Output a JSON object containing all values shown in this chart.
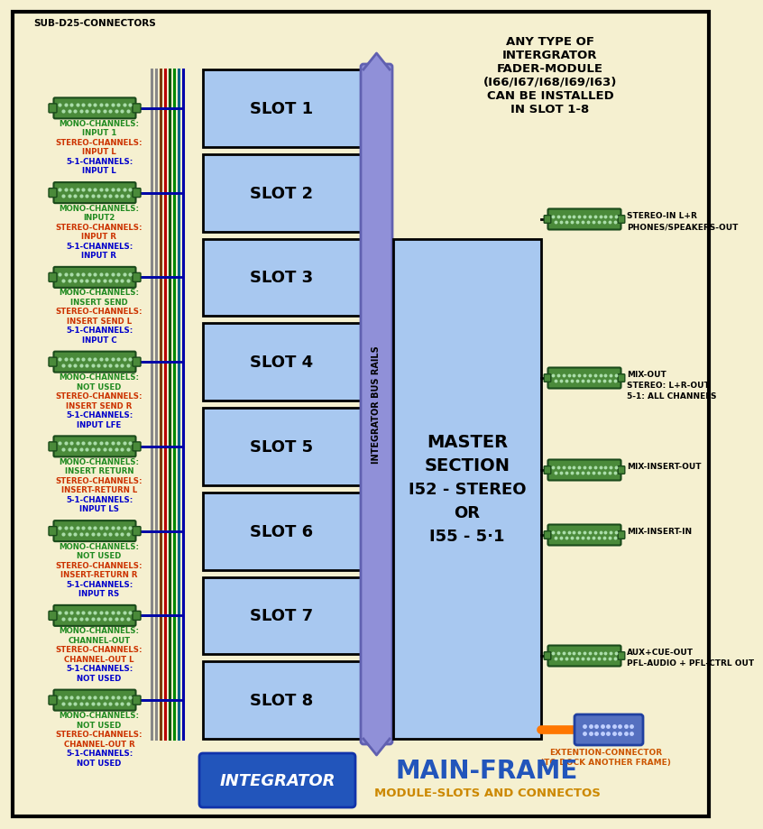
{
  "bg_color": "#F5F0D0",
  "sub_d25_label": "SUB-D25-CONNECTORS",
  "slots": [
    "SLOT 1",
    "SLOT 2",
    "SLOT 3",
    "SLOT 4",
    "SLOT 5",
    "SLOT 6",
    "SLOT 7",
    "SLOT 8"
  ],
  "slot_color": "#A8C8F0",
  "bus_rail_color": "#9090D8",
  "bus_rail_border": "#6060B0",
  "bus_rail_label": "INTEGRATOR BUS RAILS",
  "master_color": "#A8C8F0",
  "master_label": [
    "MASTER",
    "SECTION",
    "I52 - STEREO",
    "OR",
    "I55 - 5·1"
  ],
  "fader_text": [
    "ANY TYPE OF",
    "INTERGRATOR",
    "FADER-MODULE",
    "(I66/I67/I68/I69/I63)",
    "CAN BE INSTALLED",
    "IN SLOT 1-8"
  ],
  "left_connectors": [
    {
      "lines": [
        [
          "MONO-CHANNELS:",
          "#228B22"
        ],
        [
          "INPUT 1",
          "#228B22"
        ],
        [
          "STEREO-CHANNELS:",
          "#CC3300"
        ],
        [
          "INPUT L",
          "#CC3300"
        ],
        [
          "5-1-CHANNELS:",
          "#0000CC"
        ],
        [
          "INPUT L",
          "#0000CC"
        ]
      ]
    },
    {
      "lines": [
        [
          "MONO-CHANNELS:",
          "#228B22"
        ],
        [
          "INPUT2",
          "#228B22"
        ],
        [
          "STEREO-CHANNELS:",
          "#CC3300"
        ],
        [
          "INPUT R",
          "#CC3300"
        ],
        [
          "5-1-CHANNELS:",
          "#0000CC"
        ],
        [
          "INPUT R",
          "#0000CC"
        ]
      ]
    },
    {
      "lines": [
        [
          "MONO-CHANNELS:",
          "#228B22"
        ],
        [
          "INSERT SEND",
          "#228B22"
        ],
        [
          "STEREO-CHANNELS:",
          "#CC3300"
        ],
        [
          "INSERT SEND L",
          "#CC3300"
        ],
        [
          "5-1-CHANNELS:",
          "#0000CC"
        ],
        [
          "INPUT C",
          "#0000CC"
        ]
      ]
    },
    {
      "lines": [
        [
          "MONO-CHANNELS:",
          "#228B22"
        ],
        [
          "NOT USED",
          "#228B22"
        ],
        [
          "STEREO-CHANNELS:",
          "#CC3300"
        ],
        [
          "INSERT SEND R",
          "#CC3300"
        ],
        [
          "5-1-CHANNELS:",
          "#0000CC"
        ],
        [
          "INPUT LFE",
          "#0000CC"
        ]
      ]
    },
    {
      "lines": [
        [
          "MONO-CHANNELS:",
          "#228B22"
        ],
        [
          "INSERT RETURN",
          "#228B22"
        ],
        [
          "STEREO-CHANNELS:",
          "#CC3300"
        ],
        [
          "INSERT-RETURN L",
          "#CC3300"
        ],
        [
          "5-1-CHANNELS:",
          "#0000CC"
        ],
        [
          "INPUT LS",
          "#0000CC"
        ]
      ]
    },
    {
      "lines": [
        [
          "MONO-CHANNELS:",
          "#228B22"
        ],
        [
          "NOT USED",
          "#228B22"
        ],
        [
          "STEREO-CHANNELS:",
          "#CC3300"
        ],
        [
          "INSERT-RETURN R",
          "#CC3300"
        ],
        [
          "5-1-CHANNELS:",
          "#0000CC"
        ],
        [
          "INPUT RS",
          "#0000CC"
        ]
      ]
    },
    {
      "lines": [
        [
          "MONO-CHANNELS:",
          "#228B22"
        ],
        [
          "CHANNEL-OUT",
          "#228B22"
        ],
        [
          "STEREO-CHANNELS:",
          "#CC3300"
        ],
        [
          "CHANNEL-OUT L",
          "#CC3300"
        ],
        [
          "5-1-CHANNELS:",
          "#0000CC"
        ],
        [
          "NOT USED",
          "#0000CC"
        ]
      ]
    },
    {
      "lines": [
        [
          "MONO-CHANNELS:",
          "#228B22"
        ],
        [
          "NOT USED",
          "#228B22"
        ],
        [
          "STEREO-CHANNELS:",
          "#CC3300"
        ],
        [
          "CHANNEL-OUT R",
          "#CC3300"
        ],
        [
          "5-1-CHANNELS:",
          "#0000CC"
        ],
        [
          "NOT USED",
          "#0000CC"
        ]
      ]
    }
  ],
  "right_connectors": [
    {
      "label": [
        "STEREO-IN L+R",
        "PHONES/SPEAKERS-OUT"
      ]
    },
    {
      "label": [
        "MIX-OUT",
        "STEREO: L+R-OUT",
        "5-1: ALL CHANNELS"
      ]
    },
    {
      "label": [
        "MIX-INSERT-OUT"
      ]
    },
    {
      "label": [
        "MIX-INSERT-IN"
      ]
    },
    {
      "label": [
        "AUX+CUE-OUT",
        "PFL-AUDIO + PFL-CTRL OUT"
      ]
    }
  ],
  "wire_colors": [
    "#888888",
    "#888888",
    "#7B3B00",
    "#BB0000",
    "#005500",
    "#008800",
    "#006688",
    "#0000AA"
  ],
  "conn_wire_colors": [
    "#888888",
    "#888888",
    "#7B3B00",
    "#BB0000",
    "#005500",
    "#008800",
    "#006688",
    "#0000AA"
  ],
  "horiz_wire_colors_per_conn": [
    [
      "#888888",
      "#888888",
      "#7B3B00",
      "#BB0000",
      "#005500",
      "#008800",
      "#006688",
      "#0000AA"
    ],
    [
      "#888888",
      "#888888",
      "#7B3B00",
      "#BB0000",
      "#005500",
      "#008800",
      "#006688",
      "#0000AA"
    ],
    [
      "#7B3B00",
      "#888888",
      "#7B3B00",
      "#BB0000",
      "#005500",
      "#008800",
      "#006688",
      "#0000AA"
    ],
    [
      "#7B3B00",
      "#888888",
      "#7B3B00",
      "#BB0000",
      "#005500",
      "#008800",
      "#006688",
      "#0000AA"
    ],
    [
      "#008800",
      "#888888",
      "#7B3B00",
      "#BB0000",
      "#005500",
      "#008800",
      "#006688",
      "#0000AA"
    ],
    [
      "#008800",
      "#888888",
      "#7B3B00",
      "#BB0000",
      "#005500",
      "#008800",
      "#006688",
      "#0000AA"
    ],
    [
      "#0000AA",
      "#888888",
      "#7B3B00",
      "#BB0000",
      "#005500",
      "#008800",
      "#006688",
      "#0000AA"
    ],
    [
      "#0000AA",
      "#888888",
      "#7B3B00",
      "#BB0000",
      "#005500",
      "#008800",
      "#006688",
      "#0000AA"
    ]
  ]
}
